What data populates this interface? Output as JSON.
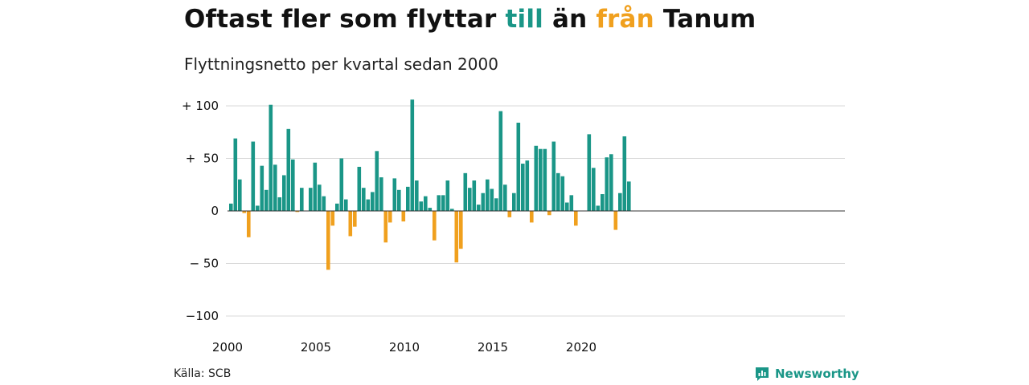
{
  "header": {
    "title_part1": "Oftast fler som flyttar ",
    "title_in": "till",
    "title_part2": " än ",
    "title_out": "från",
    "title_part3": " Tanum",
    "subtitle": "Flyttningsnetto per kvartal sedan 2000"
  },
  "footer": {
    "source": "Källa: SCB",
    "brand": "Newsworthy",
    "brand_icon": "newsworthy-logo-icon"
  },
  "colors": {
    "positive": "#1a9687",
    "negative": "#f0a01e",
    "grid": "#d9d9d9",
    "zero": "#333333"
  },
  "chart_data": {
    "type": "bar",
    "title": "Oftast fler som flyttar till än från Tanum",
    "subtitle": "Flyttningsnetto per kvartal sedan 2000",
    "xlabel": "",
    "ylabel": "",
    "ylim": [
      -110,
      110
    ],
    "yticks": [
      100,
      50,
      0,
      -50,
      -100
    ],
    "ytick_labels": [
      "+ 100",
      "+  50",
      "0",
      "− 50",
      "−100"
    ],
    "xticks": [
      "2000",
      "2005",
      "2010",
      "2015",
      "2020"
    ],
    "grid": true,
    "start_period": "2000 Q1",
    "values": [
      7,
      69,
      30,
      -2,
      -25,
      66,
      5,
      43,
      20,
      101,
      44,
      13,
      34,
      78,
      49,
      -1,
      22,
      0,
      22,
      46,
      25,
      14,
      -56,
      -14,
      7,
      50,
      11,
      -24,
      -15,
      42,
      22,
      11,
      18,
      57,
      32,
      -30,
      -11,
      31,
      20,
      -10,
      23,
      106,
      29,
      9,
      14,
      3,
      -28,
      15,
      15,
      29,
      2,
      -49,
      -36,
      36,
      22,
      29,
      6,
      17,
      30,
      21,
      12,
      95,
      25,
      -6,
      17,
      84,
      45,
      48,
      -11,
      62,
      59,
      59,
      -4,
      66,
      36,
      33,
      8,
      15,
      -14,
      0,
      0,
      73,
      41,
      5,
      16,
      51,
      54,
      -18,
      17,
      71,
      28
    ]
  }
}
